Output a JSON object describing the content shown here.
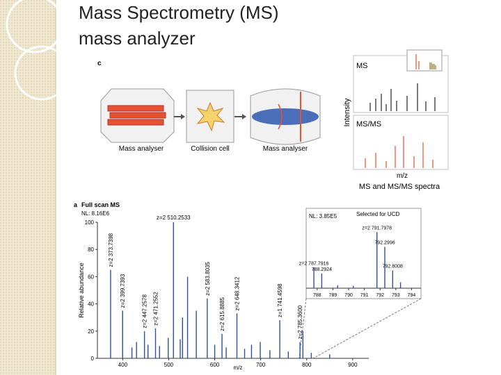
{
  "slide": {
    "title_lines": [
      "Mass Spectrometry (MS)",
      "mass analyzer"
    ]
  },
  "panel_c": {
    "label": "c",
    "stages": [
      "Mass analyser",
      "Collision cell",
      "Mass analyser"
    ],
    "ms": "MS",
    "msms": "MS/MS",
    "y_label": "Intensity",
    "x_label": "m/z",
    "caption": "MS and MS/MS spectra"
  },
  "chart_data": {
    "type": "spectrum",
    "panel": "a",
    "title": "Full scan MS",
    "subtitle": "NL: 8.16E6",
    "x_label": "m/z",
    "y_label": "Relative abundance",
    "color": "#2f4f9a",
    "xlim": [
      345,
      935
    ],
    "ylim": [
      0,
      100
    ],
    "xticks": [
      400,
      500,
      600,
      700,
      800,
      900
    ],
    "yticks": [
      0,
      20,
      40,
      60,
      80,
      100
    ],
    "x": [
      373.7,
      399.7,
      420,
      430,
      447.3,
      455,
      471.3,
      480,
      499,
      510.3,
      525,
      530,
      541,
      560,
      583.8,
      600,
      615.9,
      625,
      648.3,
      665,
      680,
      699,
      720,
      741.5,
      760,
      785.4,
      791.8,
      810,
      850
    ],
    "values": [
      65,
      35,
      8,
      12,
      20,
      10,
      22,
      9,
      15,
      100,
      14,
      30,
      60,
      35,
      44,
      10,
      18,
      8,
      33,
      7,
      10,
      12,
      6,
      28,
      5,
      12,
      20,
      4,
      3
    ],
    "peak_labels": [
      "z=2 373.7398",
      "z=2 399.7393",
      null,
      null,
      "z=2 447.2578",
      null,
      "z=2 471.2552",
      null,
      null,
      "z=2 510.2533",
      null,
      null,
      null,
      null,
      "z=2 583.8035",
      null,
      "z=2 615.8885",
      null,
      "z=2 648.3412",
      null,
      null,
      null,
      null,
      "z=1 741.4598",
      null,
      "z=2 785.3600",
      null,
      null,
      null
    ],
    "inset": {
      "subtitle": "NL: 3.85E5",
      "annotation": "Selected for UCD",
      "xlim": [
        787.3,
        794.6
      ],
      "ylim": [
        0,
        100
      ],
      "xticks": [
        788,
        789,
        790,
        791,
        792,
        793,
        794
      ],
      "x": [
        787.79,
        788.29,
        789.3,
        790.3,
        791.8,
        792.3,
        792.8,
        793.3
      ],
      "values": [
        35,
        25,
        5,
        4,
        95,
        70,
        30,
        10
      ],
      "peak_labels": [
        "z=2 787.7916",
        "788.2924",
        null,
        null,
        "z=2 791.7978",
        "792.2996",
        "792.8008",
        null
      ]
    }
  }
}
